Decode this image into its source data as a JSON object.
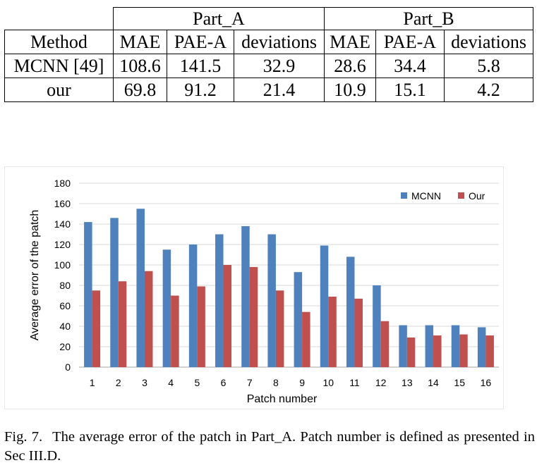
{
  "table": {
    "group_a": "Part_A",
    "group_b": "Part_B",
    "method_header": "Method",
    "col_mae": "MAE",
    "col_pae": "PAE-A",
    "col_dev": "deviations",
    "rows": [
      {
        "method": "MCNN [49]",
        "a_mae": "108.6",
        "a_pae": "141.5",
        "a_dev": "32.9",
        "b_mae": "28.6",
        "b_pae": "34.4",
        "b_dev": "5.8"
      },
      {
        "method": "our",
        "a_mae": "69.8",
        "a_pae": "91.2",
        "a_dev": "21.4",
        "b_mae": "10.9",
        "b_pae": "15.1",
        "b_dev": "4.2"
      }
    ]
  },
  "chart_data": {
    "type": "bar",
    "xlabel": "Patch number",
    "ylabel": "Average error of the patch",
    "categories": [
      "1",
      "2",
      "3",
      "4",
      "5",
      "6",
      "7",
      "8",
      "9",
      "10",
      "11",
      "12",
      "13",
      "14",
      "15",
      "16"
    ],
    "series": [
      {
        "name": "MCNN",
        "color": "#4f81bd",
        "values": [
          142,
          146,
          155,
          115,
          120,
          130,
          138,
          130,
          93,
          119,
          108,
          80,
          41,
          41,
          41,
          39
        ]
      },
      {
        "name": "Our",
        "color": "#c0504d",
        "values": [
          75,
          84,
          94,
          70,
          79,
          100,
          98,
          75,
          54,
          69,
          67,
          45,
          29,
          31,
          32,
          31
        ]
      }
    ],
    "ylim": [
      0,
      180
    ],
    "yticks": [
      0,
      20,
      40,
      60,
      80,
      100,
      120,
      140,
      160,
      180
    ],
    "grid": true,
    "legend_position": "top-right"
  },
  "caption": {
    "label": "Fig. 7.",
    "text": "The average error of the patch in Part_A. Patch number is defined as presented in Sec III.D."
  }
}
